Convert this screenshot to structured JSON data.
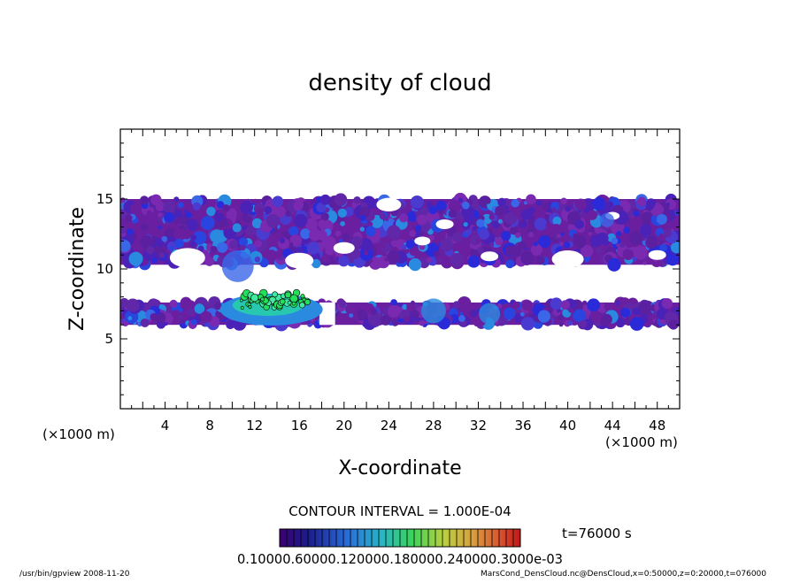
{
  "chart_data": {
    "type": "heatmap",
    "title": "density of cloud",
    "xlabel": "X-coordinate",
    "ylabel": "Z-coordinate",
    "x_unit_left": "(×1000 m)",
    "x_unit_right": "(×1000 m)",
    "xlim": [
      0,
      50
    ],
    "ylim": [
      0,
      20
    ],
    "x_ticks": [
      4,
      8,
      12,
      16,
      20,
      24,
      28,
      32,
      36,
      40,
      44,
      48
    ],
    "y_ticks": [
      5,
      10,
      15
    ],
    "contour_interval": "CONTOUR INTERVAL = 1.000E-04",
    "time_label": "t=76000 s",
    "colorbar_label": "0.10000.60000.120000.180000.240000.3000e-03",
    "footer_left": "/usr/bin/gpview  2008-11-20",
    "footer_right": "MarsCond_DensCloud.nc@DensCloud,x=0:50000,z=0:20000,t=076000",
    "cloud_layers": [
      {
        "x": [
          0,
          50
        ],
        "z": [
          10.3,
          15
        ],
        "level": 0.15
      },
      {
        "x": [
          0,
          50
        ],
        "z": [
          6.0,
          7.6
        ],
        "level": 0.25
      }
    ],
    "colors": {
      "low": "#6a1fa0",
      "mid": "#2a2ad8",
      "high": "#22e05a",
      "max": "#d83a1a"
    }
  }
}
